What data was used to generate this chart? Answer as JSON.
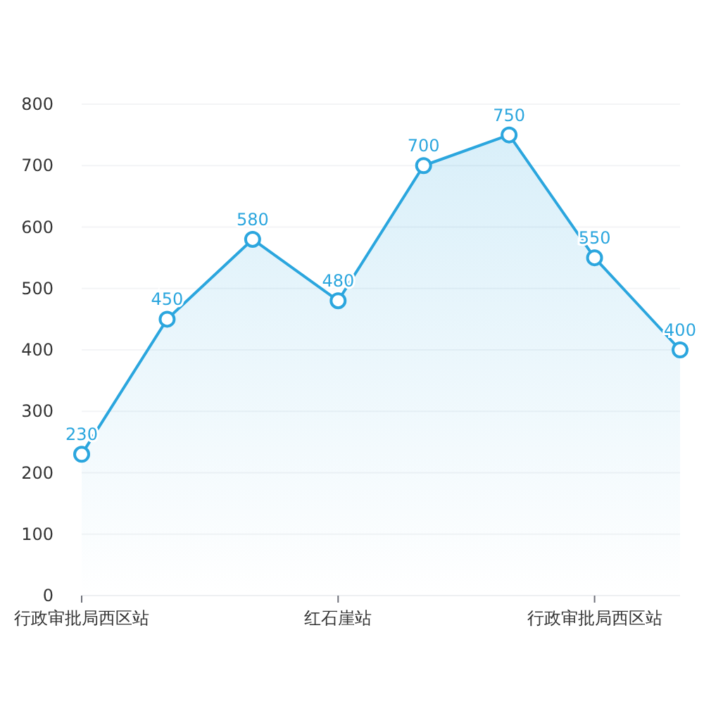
{
  "chart_data": {
    "type": "area",
    "categories": [
      "行政审批局西区站",
      null,
      null,
      "红石崖站",
      null,
      null,
      "行政审批局西区站",
      null
    ],
    "series": [
      {
        "color": "#2ba6de",
        "values": [
          230,
          450,
          580,
          480,
          700,
          750,
          550,
          400
        ]
      }
    ],
    "ylim": [
      0,
      800
    ],
    "yticks": [
      0,
      100,
      200,
      300,
      400,
      500,
      600,
      700,
      800
    ],
    "grid": "y",
    "marker": "circle",
    "line_style": "solid",
    "data_labels": true
  }
}
